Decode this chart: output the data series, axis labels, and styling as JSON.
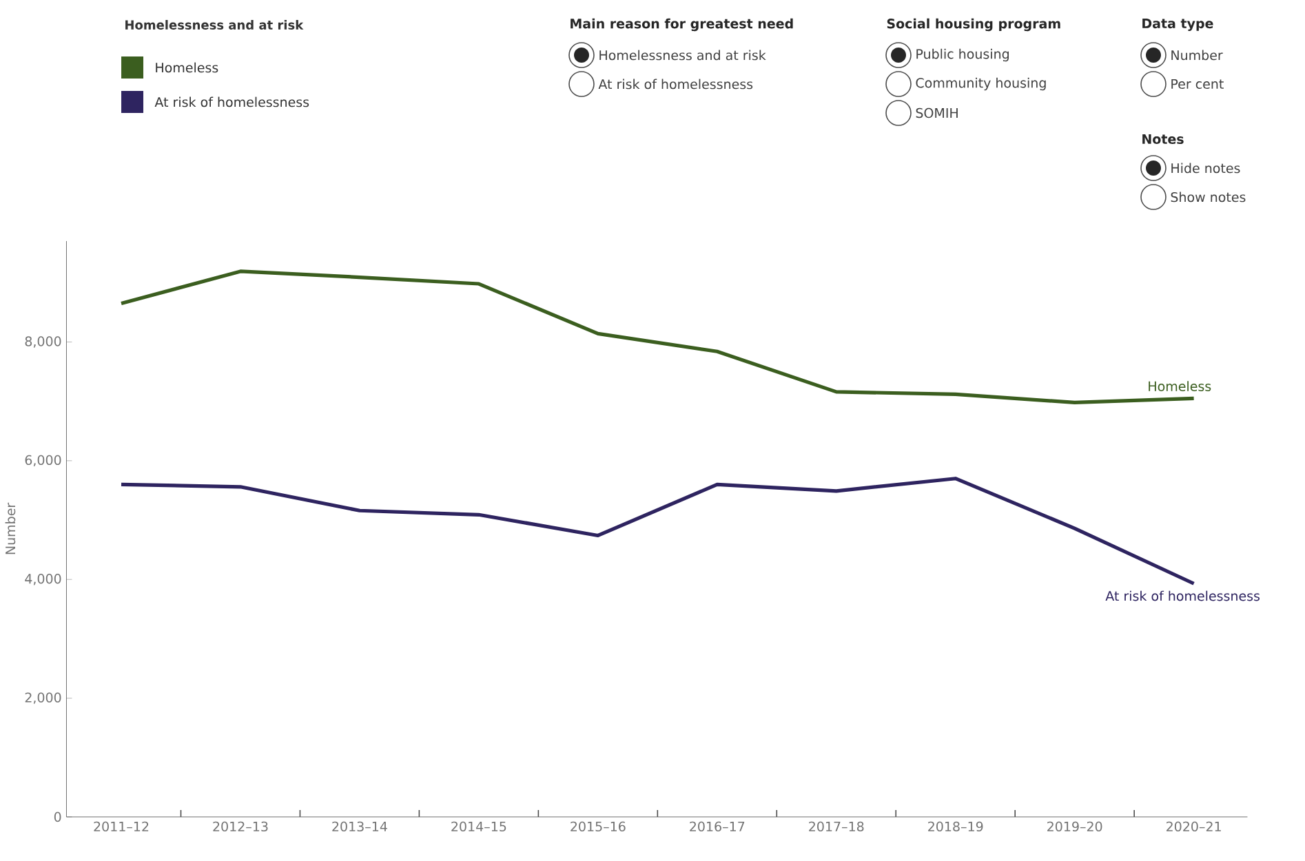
{
  "chart_data": {
    "type": "line",
    "ylabel": "Number",
    "legend_title": "Homelessness and at risk",
    "legend": "top left",
    "grid": false,
    "marker": "none",
    "line_style": "solid",
    "categories": [
      "2011–12",
      "2012–13",
      "2013–14",
      "2014–15",
      "2015–16",
      "2016–17",
      "2017–18",
      "2018–19",
      "2019–20",
      "2020–21"
    ],
    "ylim": [
      0,
      9700
    ],
    "yticks": [
      {
        "value": 0,
        "label": "0"
      },
      {
        "value": 2000,
        "label": "2,000"
      },
      {
        "value": 4000,
        "label": "4,000"
      },
      {
        "value": 6000,
        "label": "6,000"
      },
      {
        "value": 8000,
        "label": "8,000"
      }
    ],
    "series": [
      {
        "name": "Homeless",
        "color": "#3b5e1f",
        "values": [
          8650,
          9190,
          9090,
          8980,
          8140,
          7840,
          7160,
          7120,
          6980,
          7050
        ]
      },
      {
        "name": "At risk of homelessness",
        "color": "#2e2460",
        "values": [
          5600,
          5560,
          5160,
          5090,
          4740,
          5600,
          5490,
          5700,
          4860,
          3930
        ]
      }
    ],
    "annotations": [
      "Main reason for greatest need",
      "Homelessness and at risk",
      "At risk of homelessness",
      "Social housing program",
      "Public housing",
      "Community housing",
      "SOMIH",
      "Data type",
      "Number",
      "Per cent",
      "Notes",
      "Hide notes",
      "Show notes"
    ]
  }
}
